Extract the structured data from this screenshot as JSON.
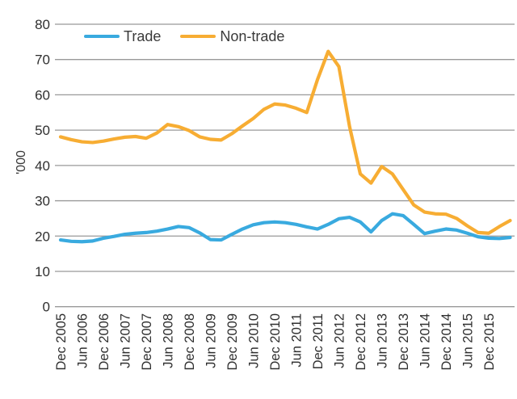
{
  "chart_data": {
    "type": "line",
    "title": "",
    "ylabel": "'000",
    "xlabel": "",
    "ylim": [
      0,
      80
    ],
    "y_ticks": [
      0,
      10,
      20,
      30,
      40,
      50,
      60,
      70,
      80
    ],
    "grid": "horizontal",
    "legend_position": "top-left-inside",
    "x_frequency": "quarterly",
    "x": [
      "Dec 2005",
      "Mar 2006",
      "Jun 2006",
      "Sep 2006",
      "Dec 2006",
      "Mar 2007",
      "Jun 2007",
      "Sep 2007",
      "Dec 2007",
      "Mar 2008",
      "Jun 2008",
      "Sep 2008",
      "Dec 2008",
      "Mar 2009",
      "Jun 2009",
      "Sep 2009",
      "Dec 2009",
      "Mar 2010",
      "Jun 2010",
      "Sep 2010",
      "Dec 2010",
      "Mar 2011",
      "Jun 2011",
      "Sep 2011",
      "Dec 2011",
      "Mar 2012",
      "Jun 2012",
      "Sep 2012",
      "Dec 2012",
      "Mar 2013",
      "Jun 2013",
      "Sep 2013",
      "Dec 2013",
      "Mar 2014",
      "Jun 2014",
      "Sep 2014",
      "Dec 2014",
      "Mar 2015",
      "Jun 2015",
      "Sep 2015",
      "Dec 2015",
      "Mar 2016",
      "Jun 2016"
    ],
    "x_tick_labels": [
      "Dec 2005",
      "Jun 2006",
      "Dec 2006",
      "Jun 2007",
      "Dec 2007",
      "Jun 2008",
      "Dec 2008",
      "Jun 2009",
      "Dec 2009",
      "Jun 2010",
      "Dec 2010",
      "Jun 2011",
      "Dec 2011",
      "Jun 2012",
      "Dec 2012",
      "Jun 2013",
      "Dec 2013",
      "Jun 2014",
      "Dec 2014",
      "Jun 2015",
      "Dec 2015"
    ],
    "series": [
      {
        "name": "Trade",
        "color": "#39AADF",
        "values": [
          18.9,
          18.5,
          18.4,
          18.6,
          19.4,
          19.9,
          20.5,
          20.8,
          21.0,
          21.4,
          22.0,
          22.7,
          22.4,
          20.9,
          19.0,
          18.9,
          20.5,
          22.0,
          23.2,
          23.8,
          24.0,
          23.8,
          23.3,
          22.6,
          22.0,
          23.3,
          24.9,
          25.3,
          24.0,
          21.2,
          24.4,
          26.3,
          25.8,
          23.3,
          20.7,
          21.4,
          22.0,
          21.7,
          20.8,
          19.8,
          19.4,
          19.3,
          19.6
        ]
      },
      {
        "name": "Non-trade",
        "color": "#F7AD33",
        "values": [
          48.1,
          47.3,
          46.7,
          46.5,
          46.9,
          47.5,
          48.0,
          48.2,
          47.7,
          49.2,
          51.6,
          51.0,
          49.9,
          48.1,
          47.4,
          47.2,
          49.0,
          51.2,
          53.3,
          55.9,
          57.4,
          57.1,
          56.2,
          55.0,
          64.3,
          72.3,
          68.0,
          51.0,
          37.6,
          35.0,
          39.7,
          37.6,
          33.2,
          28.8,
          26.8,
          26.3,
          26.2,
          25.0,
          22.9,
          21.0,
          20.8,
          22.7,
          24.4
        ]
      }
    ],
    "style": {
      "gridline_color": "#999999",
      "tick_label_color": "#2f2f2f",
      "line_width": 4.2
    }
  }
}
